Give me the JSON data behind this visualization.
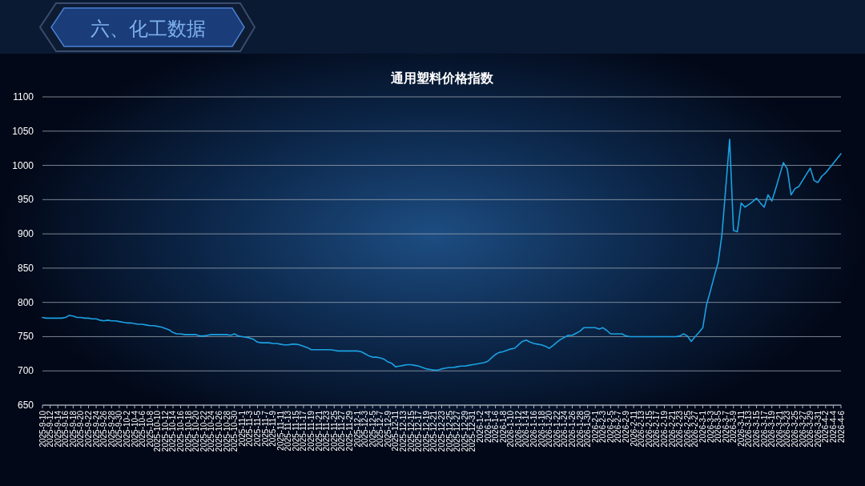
{
  "chart_data": {
    "type": "line",
    "title": "通用塑料价格指数",
    "annotations": [
      "六、化工数据"
    ],
    "categories": [
      "2025-9-10",
      null,
      "2025-9-12",
      null,
      "2025-9-14",
      null,
      "2025-9-16",
      null,
      "2025-9-18",
      null,
      "2025-9-20",
      null,
      "2025-9-22",
      null,
      "2025-9-24",
      null,
      "2025-9-26",
      null,
      "2025-9-28",
      null,
      "2025-9-30",
      null,
      "2025-10-2",
      null,
      "2025-10-4",
      null,
      "2025-10-6",
      null,
      "2025-10-8",
      null,
      "2025-10-10",
      null,
      "2025-10-12",
      null,
      "2025-10-14",
      null,
      "2025-10-16",
      null,
      "2025-10-18",
      null,
      "2025-10-20",
      null,
      "2025-10-22",
      null,
      "2025-10-24",
      null,
      "2025-10-26",
      null,
      "2025-10-28",
      null,
      "2025-10-30",
      null,
      "2025-11-1",
      null,
      "2025-11-3",
      null,
      "2025-11-5",
      null,
      "2025-11-7",
      null,
      "2025-11-9",
      null,
      "2025-11-11",
      null,
      "2025-11-13",
      null,
      "2025-11-15",
      null,
      "2025-11-17",
      null,
      "2025-11-19",
      null,
      "2025-11-21",
      null,
      "2025-11-23",
      null,
      "2025-11-25",
      null,
      "2025-11-27",
      null,
      "2025-11-29",
      null,
      "2025-12-1",
      null,
      "2025-12-3",
      null,
      "2025-12-5",
      null,
      "2025-12-7",
      null,
      "2025-12-9",
      null,
      "2025-12-11",
      null,
      "2025-12-13",
      null,
      "2025-12-15",
      null,
      "2025-12-17",
      null,
      "2025-12-19",
      null,
      "2025-12-21",
      null,
      "2025-12-23",
      null,
      "2025-12-25",
      null,
      "2025-12-27",
      null,
      "2025-12-29",
      null,
      "2025-12-31",
      null,
      "2026-1-2",
      null,
      "2026-1-4",
      null,
      "2026-1-6",
      null,
      "2026-1-8",
      null,
      "2026-1-10",
      null,
      "2026-1-12",
      null,
      "2026-1-14",
      null,
      "2026-1-16",
      null,
      "2026-1-18",
      null,
      "2026-1-20",
      null,
      "2026-1-22",
      null,
      "2026-1-24",
      null,
      "2026-1-26",
      null,
      "2026-1-28",
      null,
      "2026-1-30",
      null,
      "2026-2-1",
      null,
      "2026-2-3",
      null,
      "2026-2-5",
      null,
      "2026-2-7",
      null,
      "2026-2-9",
      null,
      "2026-2-11",
      null,
      "2026-2-13",
      null,
      "2026-2-15",
      null,
      "2026-2-17",
      null,
      "2026-2-19",
      null,
      "2026-2-21",
      null,
      "2026-2-23",
      null,
      "2026-2-25",
      null,
      "2026-2-27",
      null,
      "2026-3-1",
      null,
      "2026-3-3",
      null,
      "2026-3-5",
      null,
      "2026-3-7",
      null,
      "2026-3-9",
      null,
      "2026-3-11",
      null,
      "2026-3-13",
      null,
      "2026-3-15",
      null,
      "2026-3-17",
      null,
      "2026-3-19",
      null,
      "2026-3-21",
      null,
      "2026-3-23",
      null,
      "2026-3-25",
      null,
      "2026-3-27",
      null,
      "2026-3-29",
      null,
      "2026-3-31",
      null,
      "2026-4-2",
      null,
      "2026-4-4",
      null,
      "2026-4-6"
    ],
    "series": [
      {
        "color": "#1ba1e2",
        "values": [
          778,
          777,
          777,
          777,
          777,
          777,
          778,
          781,
          780,
          778,
          778,
          777,
          777,
          776,
          776,
          774,
          773,
          774,
          773,
          773,
          772,
          771,
          770,
          770,
          769,
          768,
          768,
          767,
          766,
          766,
          765,
          764,
          762,
          760,
          756,
          754,
          754,
          753,
          753,
          753,
          753,
          751,
          751,
          752,
          753,
          753,
          753,
          753,
          753,
          752,
          754,
          751,
          750,
          749,
          748,
          746,
          742,
          741,
          741,
          741,
          740,
          740,
          739,
          738,
          738,
          739,
          739,
          738,
          736,
          734,
          731,
          731,
          731,
          731,
          731,
          731,
          730,
          729,
          729,
          729,
          729,
          729,
          729,
          728,
          725,
          722,
          720,
          720,
          719,
          717,
          713,
          711,
          706,
          707,
          708,
          709,
          709,
          708,
          707,
          705,
          703,
          702,
          701,
          701,
          703,
          704,
          705,
          705,
          706,
          707,
          707,
          708,
          709,
          710,
          711,
          712,
          714,
          719,
          724,
          727,
          728,
          730,
          732,
          733,
          738,
          743,
          745,
          742,
          740,
          739,
          738,
          736,
          733,
          737,
          742,
          746,
          749,
          752,
          752,
          755,
          758,
          763,
          763,
          763,
          763,
          761,
          763,
          759,
          754,
          754,
          754,
          754,
          751,
          750,
          750,
          750,
          750,
          750,
          750,
          750,
          750,
          750,
          750,
          750,
          750,
          750,
          751,
          754,
          751,
          743,
          750,
          756,
          763,
          797,
          817,
          838,
          858,
          899,
          968,
          1038,
          905,
          903,
          945,
          939,
          943,
          947,
          952,
          945,
          939,
          957,
          948,
          966,
          985,
          1004,
          995,
          957,
          966,
          969,
          978,
          987,
          996,
          978,
          975,
          984,
          989,
          996,
          1003,
          1010,
          1017
        ]
      }
    ],
    "ylim": [
      650,
      1100
    ],
    "yticks": [
      650,
      700,
      750,
      800,
      850,
      900,
      950,
      1000,
      1050,
      1100
    ],
    "grid": "y"
  }
}
